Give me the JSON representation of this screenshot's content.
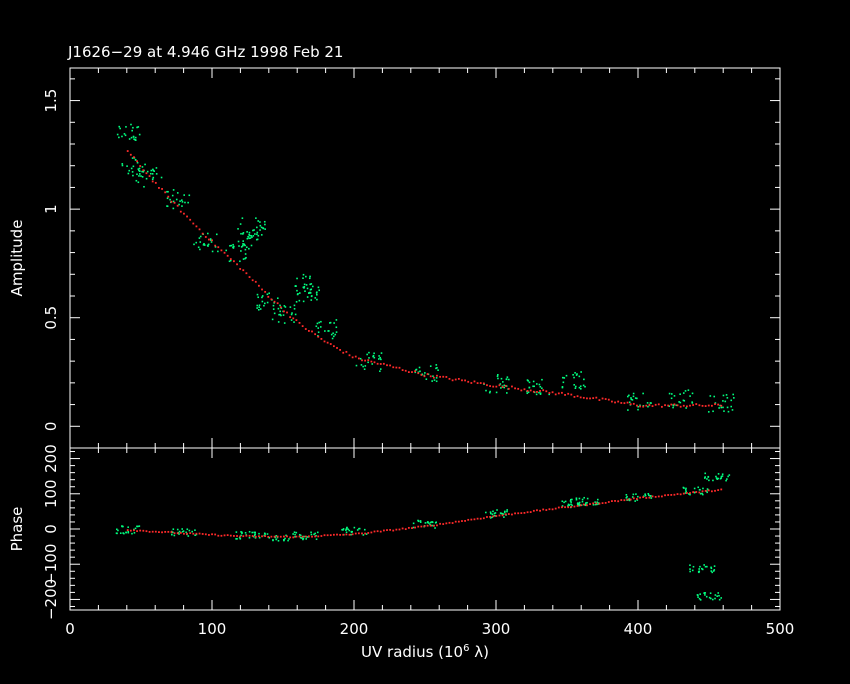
{
  "chart_data": {
    "type": "scatter",
    "title": "J1626−29 at 4.946 GHz 1998 Feb 21",
    "xlabel": "UV radius  (10",
    "xlabel_sup": "6",
    "xlabel_tail": " λ)",
    "xlim": [
      0,
      500
    ],
    "x_ticks": [
      "0",
      "100",
      "200",
      "300",
      "400",
      "500"
    ],
    "colors": {
      "frame": "#ffffff",
      "data": "#00ff7f",
      "model": "#ff2a2a"
    },
    "panels": [
      {
        "name": "amplitude",
        "ylabel": "Amplitude",
        "ylim": [
          -0.1,
          1.65
        ],
        "y_ticks": [
          {
            "value": 0,
            "label": "0"
          },
          {
            "value": 0.5,
            "label": "0.5"
          },
          {
            "value": 1,
            "label": "1"
          },
          {
            "value": 1.5,
            "label": "1.5"
          }
        ],
        "model_curve": [
          [
            40,
            1.27
          ],
          [
            60,
            1.12
          ],
          [
            80,
            0.98
          ],
          [
            100,
            0.85
          ],
          [
            120,
            0.73
          ],
          [
            140,
            0.6
          ],
          [
            160,
            0.48
          ],
          [
            180,
            0.39
          ],
          [
            200,
            0.32
          ],
          [
            250,
            0.24
          ],
          [
            300,
            0.19
          ],
          [
            350,
            0.15
          ],
          [
            400,
            0.1
          ],
          [
            460,
            0.1
          ]
        ],
        "data_cluster": [
          [
            40,
            1.35
          ],
          [
            45,
            1.2
          ],
          [
            55,
            1.15
          ],
          [
            75,
            1.05
          ],
          [
            95,
            0.85
          ],
          [
            118,
            0.8
          ],
          [
            126,
            0.87
          ],
          [
            128,
            0.92
          ],
          [
            140,
            0.58
          ],
          [
            150,
            0.52
          ],
          [
            165,
            0.62
          ],
          [
            167,
            0.66
          ],
          [
            180,
            0.45
          ],
          [
            210,
            0.3
          ],
          [
            250,
            0.25
          ],
          [
            300,
            0.2
          ],
          [
            330,
            0.18
          ],
          [
            355,
            0.22
          ],
          [
            400,
            0.12
          ],
          [
            430,
            0.13
          ],
          [
            458,
            0.11
          ]
        ]
      },
      {
        "name": "phase",
        "ylabel": "Phase",
        "ylim": [
          -230,
          230
        ],
        "y_ticks": [
          {
            "value": -200,
            "label": "−200"
          },
          {
            "value": -100,
            "label": "−100"
          },
          {
            "value": 0,
            "label": "0"
          },
          {
            "value": 100,
            "label": "100"
          },
          {
            "value": 200,
            "label": "200"
          }
        ],
        "model_curve": [
          [
            40,
            0
          ],
          [
            80,
            -10
          ],
          [
            120,
            -18
          ],
          [
            160,
            -20
          ],
          [
            200,
            -12
          ],
          [
            250,
            10
          ],
          [
            300,
            40
          ],
          [
            350,
            65
          ],
          [
            400,
            90
          ],
          [
            460,
            115
          ]
        ],
        "data_cluster": [
          [
            40,
            0
          ],
          [
            80,
            -8
          ],
          [
            125,
            -15
          ],
          [
            145,
            -20
          ],
          [
            165,
            -18
          ],
          [
            200,
            -5
          ],
          [
            250,
            15
          ],
          [
            300,
            45
          ],
          [
            355,
            75
          ],
          [
            365,
            80
          ],
          [
            400,
            92
          ],
          [
            440,
            110
          ],
          [
            445,
            -110
          ],
          [
            450,
            -190
          ],
          [
            455,
            150
          ]
        ]
      }
    ]
  }
}
